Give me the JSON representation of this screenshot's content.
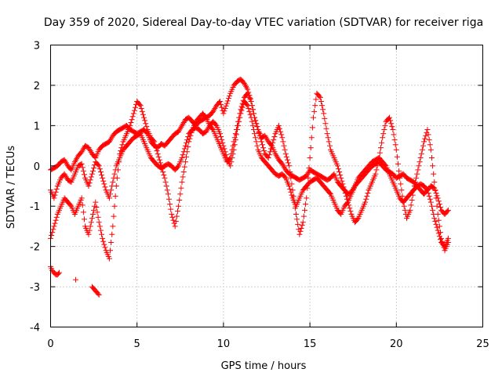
{
  "chart_data": {
    "type": "scatter",
    "title": "Day 359 of 2020, Sidereal Day-to-day VTEC variation (SDTVAR) for receiver riga",
    "xlabel": "GPS time / hours",
    "ylabel": "SDTVAR / TECUs",
    "xlim": [
      0,
      25
    ],
    "ylim": [
      -4,
      3
    ],
    "xticks": [
      0,
      5,
      10,
      15,
      20,
      25
    ],
    "yticks": [
      -4,
      -3,
      -2,
      -1,
      0,
      1,
      2,
      3
    ],
    "grid": true,
    "marker": "+",
    "color": "#ff0000",
    "series": [
      {
        "name": "trace-1",
        "x": [
          0.0,
          0.2,
          0.4,
          0.6,
          0.8,
          1.0,
          1.2,
          1.4,
          1.6,
          1.8,
          2.0,
          2.2,
          2.4,
          2.6,
          2.8,
          3.0,
          3.2,
          3.4,
          3.6,
          3.8,
          4.0,
          4.2,
          4.4,
          4.6,
          4.8,
          5.0,
          5.2,
          5.4,
          5.6,
          5.8,
          6.0,
          6.2,
          6.4,
          6.6,
          6.8,
          7.0,
          7.2,
          7.4,
          7.6,
          7.8,
          8.0,
          8.2,
          8.4,
          8.6,
          8.8,
          9.0,
          9.2,
          9.4,
          9.6,
          9.8,
          10.0,
          10.2,
          10.4,
          10.6,
          10.8,
          11.0,
          11.2,
          11.4,
          11.6,
          11.8,
          12.0,
          12.2,
          12.4,
          12.6,
          12.8,
          13.0,
          13.2,
          13.4,
          13.6,
          13.8,
          14.0,
          14.2,
          14.4,
          14.6,
          14.8,
          15.0,
          15.2,
          15.4,
          15.6,
          15.8,
          16.0,
          16.2,
          16.4,
          16.6,
          16.8,
          17.0,
          17.2,
          17.4,
          17.6,
          17.8,
          18.0,
          18.2,
          18.4,
          18.6,
          18.8,
          19.0,
          19.2,
          19.4,
          19.6,
          19.8,
          20.0,
          20.2,
          20.4,
          20.6,
          20.8,
          21.0,
          21.2,
          21.4,
          21.6,
          21.8,
          22.0,
          22.2,
          22.4,
          22.6,
          22.8,
          23.0
        ],
        "y": [
          -0.1,
          -0.05,
          0.0,
          0.1,
          0.15,
          0.0,
          -0.1,
          0.1,
          0.25,
          0.35,
          0.5,
          0.45,
          0.3,
          0.2,
          0.4,
          0.5,
          0.55,
          0.6,
          0.75,
          0.85,
          0.9,
          0.95,
          1.0,
          0.9,
          0.85,
          0.8,
          0.85,
          0.9,
          0.8,
          0.6,
          0.5,
          0.45,
          0.55,
          0.5,
          0.6,
          0.7,
          0.8,
          0.85,
          1.0,
          1.15,
          1.2,
          1.1,
          1.0,
          1.1,
          1.15,
          1.2,
          1.25,
          1.35,
          1.5,
          1.6,
          1.3,
          1.55,
          1.8,
          2.0,
          2.1,
          2.15,
          2.05,
          1.9,
          1.6,
          1.2,
          0.9,
          0.7,
          0.75,
          0.6,
          0.5,
          0.3,
          0.15,
          0.05,
          -0.1,
          -0.2,
          -0.25,
          -0.3,
          -0.35,
          -0.3,
          -0.25,
          -0.1,
          -0.15,
          -0.2,
          -0.25,
          -0.3,
          -0.35,
          -0.3,
          -0.2,
          -0.4,
          -0.5,
          -0.6,
          -0.7,
          -0.65,
          -0.5,
          -0.4,
          -0.3,
          -0.2,
          -0.1,
          0.0,
          0.05,
          0.1,
          0.0,
          -0.1,
          -0.15,
          -0.2,
          -0.3,
          -0.25,
          -0.2,
          -0.3,
          -0.35,
          -0.4,
          -0.5,
          -0.6,
          -0.7,
          -0.6,
          -0.5,
          -0.55,
          -0.8,
          -1.1,
          -1.2,
          -1.1
        ]
      },
      {
        "name": "trace-2",
        "x": [
          0.0,
          0.2,
          0.4,
          0.6,
          0.8,
          1.0,
          1.2,
          1.4,
          1.6,
          1.8,
          2.0,
          2.2,
          2.4,
          2.6,
          2.8,
          3.0,
          3.2,
          3.4,
          3.6,
          3.8,
          4.0,
          4.2,
          4.4,
          4.6,
          4.8,
          5.0,
          5.2,
          5.4,
          5.6,
          5.8,
          6.0,
          6.2,
          6.4,
          6.6,
          6.8,
          7.0,
          7.2,
          7.4,
          7.6,
          7.8,
          8.0,
          8.2,
          8.4,
          8.6,
          8.8,
          9.0,
          9.2,
          9.4,
          9.6,
          9.8,
          10.0,
          10.2,
          10.4,
          10.6,
          10.8,
          11.0,
          11.2,
          11.4,
          11.6,
          11.8,
          12.0,
          12.2,
          12.4,
          12.6,
          12.8,
          13.0,
          13.2,
          13.4,
          13.6,
          13.8,
          14.0,
          14.2,
          14.4,
          14.6,
          14.8,
          15.0,
          15.2,
          15.4,
          15.6,
          15.8,
          16.0,
          16.2,
          16.4,
          16.6,
          16.8,
          17.0,
          17.2,
          17.4,
          17.6,
          17.8,
          18.0,
          18.2,
          18.4,
          18.6,
          18.8,
          19.0,
          19.2,
          19.4,
          19.6,
          19.8,
          20.0,
          20.2,
          20.4,
          20.6,
          20.8,
          21.0,
          21.2,
          21.4,
          21.6,
          21.8,
          22.0,
          22.2,
          22.4,
          22.6,
          22.8,
          23.0
        ],
        "y": [
          -0.6,
          -0.8,
          -0.5,
          -0.3,
          -0.2,
          -0.35,
          -0.4,
          -0.2,
          0.0,
          0.05,
          -0.3,
          -0.5,
          -0.2,
          0.1,
          0.0,
          -0.3,
          -0.6,
          -0.8,
          -0.4,
          0.0,
          0.2,
          0.4,
          0.5,
          0.6,
          0.7,
          0.75,
          0.8,
          0.6,
          0.4,
          0.2,
          0.1,
          0.0,
          -0.05,
          0.0,
          0.05,
          0.0,
          -0.1,
          0.0,
          0.2,
          0.5,
          0.8,
          0.9,
          0.95,
          0.9,
          0.8,
          0.85,
          1.0,
          1.1,
          1.0,
          0.8,
          0.5,
          0.2,
          0.0,
          0.4,
          0.9,
          1.3,
          1.6,
          1.5,
          1.2,
          0.8,
          0.4,
          0.2,
          0.1,
          0.0,
          -0.1,
          -0.2,
          -0.25,
          -0.2,
          -0.3,
          -0.5,
          -0.8,
          -1.0,
          -0.8,
          -0.6,
          -0.5,
          -0.4,
          -0.35,
          -0.3,
          -0.4,
          -0.5,
          -0.6,
          -0.7,
          -0.9,
          -1.1,
          -1.2,
          -1.0,
          -0.9,
          -0.7,
          -0.5,
          -0.3,
          -0.2,
          -0.1,
          0.0,
          0.1,
          0.15,
          0.2,
          0.1,
          0.0,
          -0.2,
          -0.4,
          -0.6,
          -0.8,
          -0.9,
          -0.8,
          -0.7,
          -0.6,
          -0.5,
          -0.45,
          -0.5,
          -0.6,
          -0.9,
          -1.3,
          -1.6,
          -1.9,
          -2.0,
          -1.8
        ]
      },
      {
        "name": "trace-3",
        "x": [
          0.0,
          0.2,
          0.4,
          0.6,
          0.8,
          1.0,
          1.2,
          1.4,
          1.6,
          1.8,
          2.0,
          2.2,
          2.4,
          2.6,
          2.8,
          3.0,
          3.2,
          3.4,
          3.6,
          3.8,
          4.0,
          4.2,
          4.4,
          4.6,
          4.8,
          5.0,
          5.2,
          5.4,
          5.6,
          5.8,
          6.0,
          6.2,
          6.4,
          6.6,
          6.8,
          7.0,
          7.2,
          7.4,
          7.6,
          7.8,
          8.0,
          8.2,
          8.4,
          8.6,
          8.8,
          9.0,
          9.2,
          9.4,
          9.6,
          9.8,
          10.0,
          10.2,
          10.4,
          10.6,
          10.8,
          11.0,
          11.2,
          11.4,
          11.6,
          11.8,
          12.0,
          12.2,
          12.4,
          12.6,
          12.8,
          13.0,
          13.2,
          13.4,
          13.6,
          13.8,
          14.0,
          14.2,
          14.4,
          14.6,
          14.8,
          15.0,
          15.2,
          15.4,
          15.6,
          15.8,
          16.0,
          16.2,
          16.4,
          16.6,
          16.8,
          17.0,
          17.2,
          17.4,
          17.6,
          17.8,
          18.0,
          18.2,
          18.4,
          18.6,
          18.8,
          19.0,
          19.2,
          19.4,
          19.6,
          19.8,
          20.0,
          20.2,
          20.4,
          20.6,
          20.8,
          21.0,
          21.2,
          21.4,
          21.6,
          21.8,
          22.0,
          22.2,
          22.4,
          22.6,
          22.8,
          23.0
        ],
        "y": [
          -1.8,
          -1.5,
          -1.2,
          -1.0,
          -0.8,
          -0.9,
          -1.0,
          -1.2,
          -1.0,
          -0.8,
          -1.5,
          -1.7,
          -1.3,
          -0.9,
          -1.4,
          -1.8,
          -2.1,
          -2.3,
          -1.5,
          -0.5,
          0.3,
          0.6,
          0.8,
          1.0,
          1.3,
          1.6,
          1.5,
          1.2,
          0.9,
          0.7,
          0.6,
          0.3,
          0.0,
          -0.3,
          -0.7,
          -1.2,
          -1.5,
          -1.0,
          -0.4,
          0.1,
          0.6,
          0.9,
          1.1,
          1.2,
          1.3,
          1.2,
          1.0,
          0.9,
          0.7,
          0.5,
          0.3,
          0.1,
          0.2,
          0.6,
          1.0,
          1.4,
          1.7,
          1.8,
          1.6,
          1.2,
          0.9,
          0.6,
          0.3,
          0.2,
          0.5,
          0.8,
          1.0,
          0.7,
          0.3,
          0.0,
          -0.6,
          -1.2,
          -1.7,
          -1.4,
          -0.8,
          0.2,
          1.2,
          1.8,
          1.7,
          1.3,
          0.8,
          0.4,
          0.2,
          0.0,
          -0.3,
          -0.6,
          -0.9,
          -1.2,
          -1.4,
          -1.3,
          -1.1,
          -0.9,
          -0.6,
          -0.4,
          -0.2,
          0.2,
          0.7,
          1.1,
          1.2,
          0.9,
          0.4,
          -0.3,
          -0.9,
          -1.3,
          -1.1,
          -0.6,
          -0.2,
          0.2,
          0.6,
          0.9,
          0.4,
          -0.4,
          -1.2,
          -1.8,
          -2.1,
          -1.9
        ]
      },
      {
        "name": "trace-4",
        "x": [
          0.0,
          0.1,
          0.2,
          0.3,
          0.4,
          0.5,
          2.4,
          2.5,
          2.6,
          2.7,
          2.8
        ],
        "y": [
          -2.5,
          -2.6,
          -2.65,
          -2.7,
          -2.7,
          -2.65,
          -3.0,
          -3.05,
          -3.1,
          -3.15,
          -3.2
        ]
      }
    ]
  }
}
